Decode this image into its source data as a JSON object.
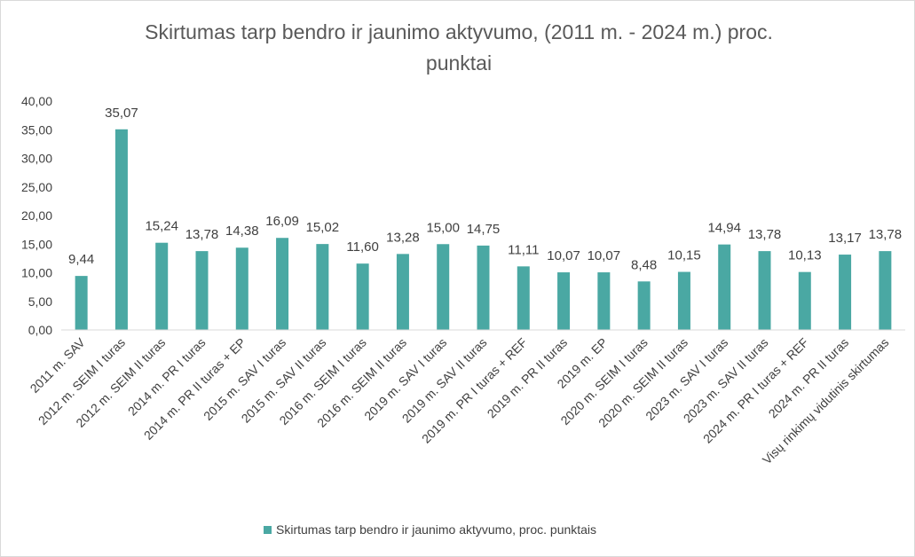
{
  "chart_data": {
    "type": "bar",
    "title": "Skirtumas tarp bendro ir jaunimo aktyvumo, (2011 m. - 2024 m.) proc. punktai",
    "title_lines": [
      "Skirtumas tarp bendro ir jaunimo aktyvumo, (2011 m. - 2024 m.) proc.",
      "punktai"
    ],
    "xlabel": "",
    "ylabel": "",
    "ylim": [
      0,
      40
    ],
    "y_ticks": [
      "0,00",
      "5,00",
      "10,00",
      "15,00",
      "20,00",
      "25,00",
      "30,00",
      "35,00",
      "40,00"
    ],
    "grid": false,
    "legend_position": "bottom",
    "categories": [
      "2011 m. SAV",
      "2012 m. SEIM I turas",
      "2012 m. SEIM II turas",
      "2014 m. PR I turas",
      "2014 m. PR II turas + EP",
      "2015 m. SAV I turas",
      "2015 m. SAV II turas",
      "2016 m. SEIM I turas",
      "2016 m. SEIM II turas",
      "2019 m. SAV I turas",
      "2019 m. SAV II turas",
      "2019 m. PR I turas + REF",
      "2019 m. PR II turas",
      "2019 m. EP",
      "2020 m. SEIM I turas",
      "2020 m. SEIM II turas",
      "2023 m. SAV I turas",
      "2023 m. SAV II turas",
      "2024 m. PR I turas + REF",
      "2024 m. PR II turas",
      "Visų rinkimų vidutinis skirtumas"
    ],
    "series": [
      {
        "name": "Skirtumas tarp bendro ir jaunimo aktyvumo, proc. punktais",
        "color": "#4aa8a3",
        "values": [
          9.44,
          35.07,
          15.24,
          13.78,
          14.38,
          16.09,
          15.02,
          11.6,
          13.28,
          15.0,
          14.75,
          11.11,
          10.07,
          10.07,
          8.48,
          10.15,
          14.94,
          13.78,
          10.13,
          13.17,
          13.78
        ],
        "labels": [
          "9,44",
          "35,07",
          "15,24",
          "13,78",
          "14,38",
          "16,09",
          "15,02",
          "11,60",
          "13,28",
          "15,00",
          "14,75",
          "11,11",
          "10,07",
          "10,07",
          "8,48",
          "10,15",
          "14,94",
          "13,78",
          "10,13",
          "13,17",
          "13,78"
        ]
      }
    ]
  },
  "colors": {
    "bar": "#4aa8a3",
    "axis": "#d9d9d9",
    "text": "#404040",
    "title": "#595959"
  }
}
